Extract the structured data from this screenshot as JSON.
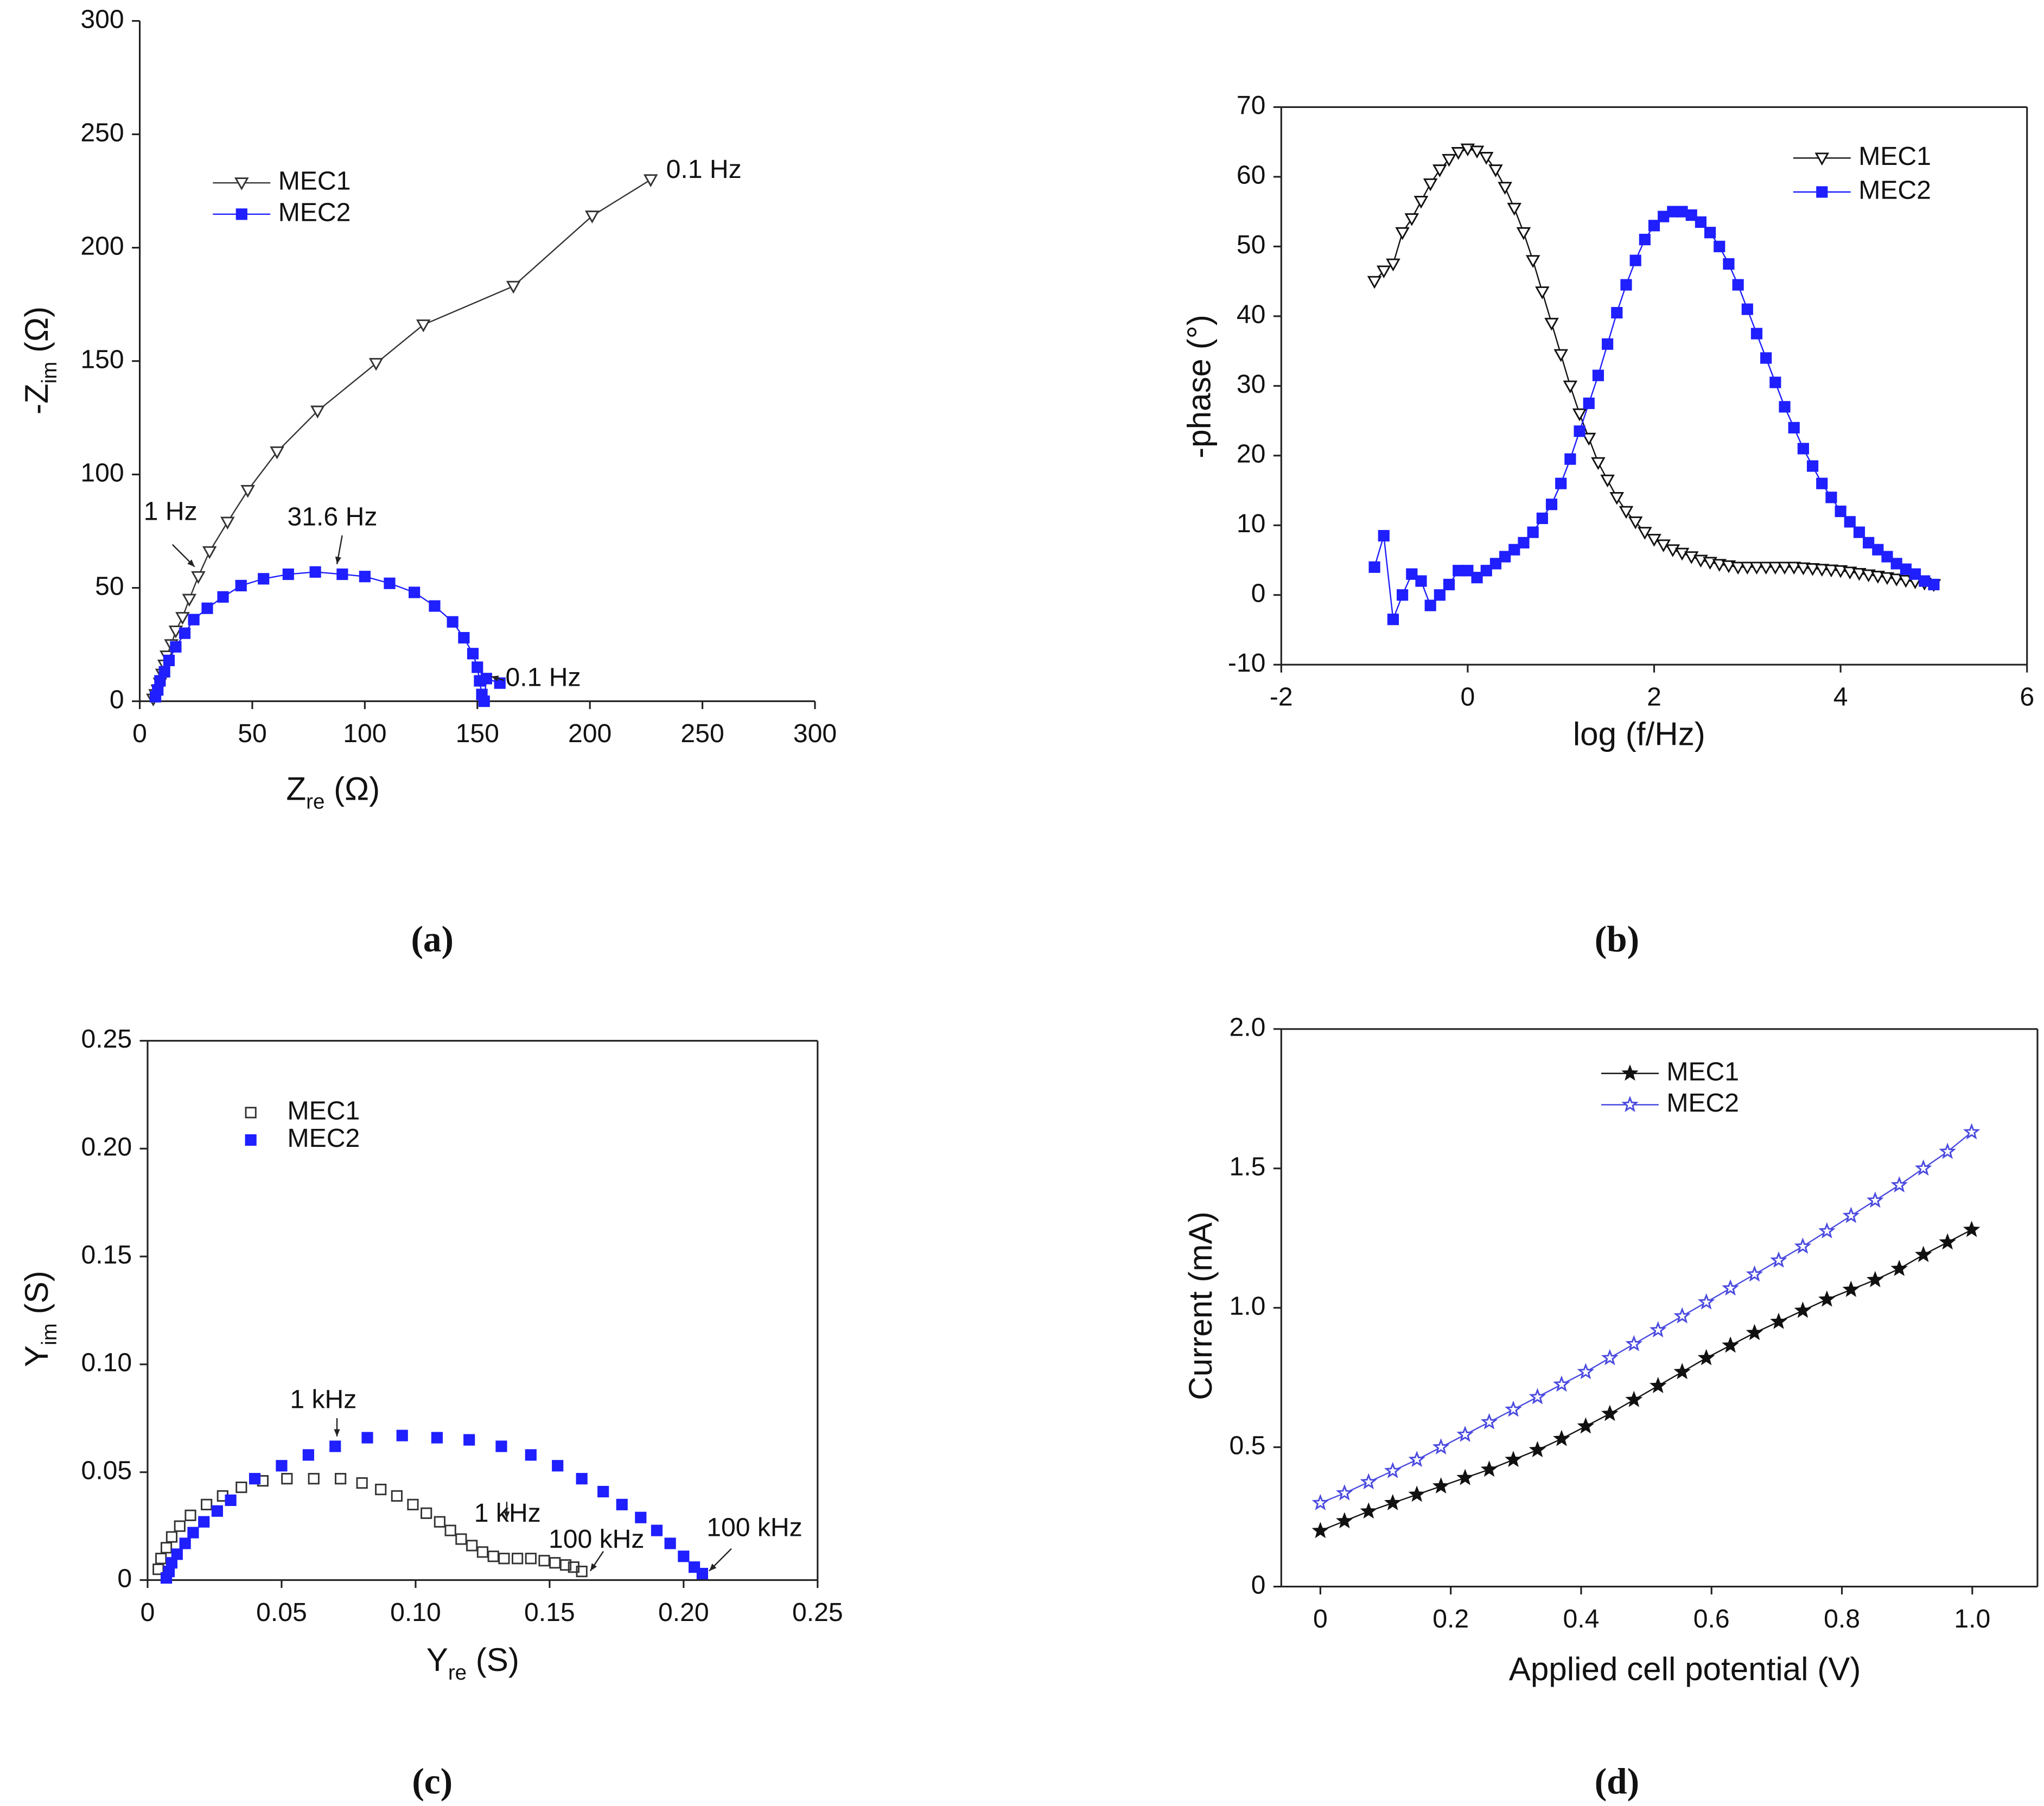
{
  "chart_data": [
    {
      "type": "line",
      "label": "(a)",
      "frame": "axes",
      "x_label": [
        "Z",
        "re",
        " (Ω)"
      ],
      "y_label": [
        "-Z",
        "im",
        " (Ω)"
      ],
      "xlim": [
        0,
        300
      ],
      "ylim": [
        0,
        300
      ],
      "xticks": [
        0,
        50,
        100,
        150,
        200,
        250,
        300
      ],
      "yticks": [
        0,
        50,
        100,
        150,
        200,
        250,
        300
      ],
      "annotations": [
        "0.1 Hz",
        "1 Hz",
        "31.6 Hz",
        "0.1 Hz"
      ],
      "series": [
        {
          "name": "MEC1",
          "color": "#333333",
          "marker": "triangle-down",
          "filled": false,
          "line": true,
          "x": [
            6,
            7,
            8,
            9,
            10,
            11,
            12,
            14,
            16,
            19,
            22,
            26,
            31,
            39,
            48,
            61,
            79,
            105,
            126,
            166,
            201,
            227
          ],
          "values": [
            1,
            3,
            5,
            8,
            12,
            16,
            20,
            25,
            31,
            37,
            45,
            55,
            66,
            79,
            93,
            110,
            128,
            149,
            166,
            183,
            214,
            230
          ]
        },
        {
          "name": "MEC2",
          "color": "#1f1fff",
          "marker": "square",
          "filled": true,
          "line": true,
          "x": [
            7,
            8,
            9,
            11,
            13,
            16,
            20,
            24,
            30,
            37,
            45,
            55,
            66,
            78,
            90,
            100,
            111,
            122,
            131,
            139,
            144,
            148,
            150,
            151,
            152,
            153,
            154,
            160
          ],
          "values": [
            2,
            5,
            9,
            13,
            18,
            24,
            30,
            36,
            41,
            46,
            51,
            54,
            56,
            57,
            56,
            55,
            52,
            48,
            42,
            35,
            28,
            21,
            15,
            9,
            3,
            0,
            10,
            8
          ]
        }
      ]
    },
    {
      "type": "line",
      "label": "(b)",
      "frame": "box",
      "x_label": [
        "log (f/Hz)"
      ],
      "y_label": [
        "-phase (°)"
      ],
      "xlim": [
        -2,
        6
      ],
      "ylim": [
        -10,
        70
      ],
      "xticks": [
        -2,
        0,
        2,
        4,
        6
      ],
      "yticks": [
        -10,
        0,
        10,
        20,
        30,
        40,
        50,
        60,
        70
      ],
      "annotations": [],
      "x": [
        -1,
        -0.9,
        -0.8,
        -0.7,
        -0.6,
        -0.5,
        -0.4,
        -0.3,
        -0.2,
        -0.1,
        0,
        0.1,
        0.2,
        0.3,
        0.4,
        0.5,
        0.6,
        0.7,
        0.8,
        0.9,
        1,
        1.1,
        1.2,
        1.3,
        1.4,
        1.5,
        1.6,
        1.7,
        1.8,
        1.9,
        2,
        2.1,
        2.2,
        2.3,
        2.4,
        2.5,
        2.6,
        2.7,
        2.8,
        2.9,
        3,
        3.1,
        3.2,
        3.3,
        3.4,
        3.5,
        3.6,
        3.7,
        3.8,
        3.9,
        4,
        4.1,
        4.2,
        4.3,
        4.4,
        4.5,
        4.6,
        4.7,
        4.8,
        4.9,
        5
      ],
      "series": [
        {
          "name": "MEC1",
          "color": "#111111",
          "marker": "triangle-down",
          "filled": false,
          "line": true,
          "values": [
            45,
            46.5,
            47.5,
            52,
            54,
            56.5,
            59,
            61,
            62.5,
            63.5,
            64,
            63.7,
            62.8,
            61,
            58.5,
            55.5,
            52,
            48,
            43.5,
            39,
            34.5,
            30,
            26,
            22.5,
            19,
            16.5,
            14,
            12,
            10.5,
            9,
            8,
            7.2,
            6.5,
            6,
            5.5,
            5,
            4.7,
            4.4,
            4.2,
            4,
            4,
            4,
            4,
            4,
            4,
            4,
            3.9,
            3.8,
            3.7,
            3.6,
            3.5,
            3.3,
            3.1,
            2.9,
            2.7,
            2.5,
            2.3,
            2.1,
            1.9,
            1.7,
            1.5
          ]
        },
        {
          "name": "MEC2",
          "color": "#1f1fff",
          "marker": "square",
          "filled": true,
          "line": true,
          "values": [
            4,
            8.5,
            -3.5,
            0,
            3,
            2,
            -1.5,
            0,
            1.5,
            3.5,
            3.5,
            2.5,
            3.5,
            4.5,
            5.5,
            6.5,
            7.5,
            9,
            11,
            13,
            16,
            19.5,
            23.5,
            27.5,
            31.5,
            36,
            40.5,
            44.5,
            48,
            51,
            53,
            54.3,
            55,
            55,
            54.5,
            53.5,
            52,
            50,
            47.5,
            44.5,
            41,
            37.5,
            34,
            30.5,
            27,
            24,
            21,
            18.5,
            16,
            14,
            12,
            10.5,
            9,
            7.5,
            6.5,
            5.5,
            4.5,
            3.7,
            3,
            2,
            1.5
          ]
        }
      ]
    },
    {
      "type": "scatter",
      "label": "(c)",
      "frame": "box",
      "x_label": [
        "Y",
        "re",
        " (S)"
      ],
      "y_label": [
        "Y",
        "im",
        " (S)"
      ],
      "xlim": [
        0,
        0.25
      ],
      "ylim": [
        0,
        0.25
      ],
      "xticks": [
        0,
        0.05,
        {
          "value": 0.1,
          "label": "0.10"
        },
        0.15,
        {
          "value": 0.2,
          "label": "0.20"
        },
        0.25
      ],
      "yticks": [
        0,
        0.05,
        {
          "value": 0.1,
          "label": "0.10"
        },
        0.15,
        {
          "value": 0.2,
          "label": "0.20"
        },
        0.25
      ],
      "annotations": [
        "1 kHz",
        "1 kHz",
        "100 kHz",
        "100 kHz"
      ],
      "series": [
        {
          "name": "MEC1",
          "color": "#333333",
          "marker": "square",
          "filled": false,
          "line": false,
          "x": [
            0.004,
            0.005,
            0.007,
            0.009,
            0.012,
            0.016,
            0.022,
            0.028,
            0.035,
            0.043,
            0.052,
            0.062,
            0.072,
            0.08,
            0.087,
            0.093,
            0.099,
            0.104,
            0.109,
            0.113,
            0.117,
            0.121,
            0.125,
            0.129,
            0.133,
            0.138,
            0.143,
            0.148,
            0.152,
            0.156,
            0.159,
            0.162
          ],
          "values": [
            0.005,
            0.01,
            0.015,
            0.02,
            0.025,
            0.03,
            0.035,
            0.039,
            0.043,
            0.046,
            0.047,
            0.047,
            0.047,
            0.045,
            0.042,
            0.039,
            0.035,
            0.031,
            0.027,
            0.023,
            0.019,
            0.016,
            0.013,
            0.011,
            0.01,
            0.01,
            0.01,
            0.009,
            0.008,
            0.007,
            0.006,
            0.004
          ]
        },
        {
          "name": "MEC2",
          "color": "#1f1fff",
          "marker": "square",
          "filled": true,
          "line": false,
          "x": [
            0.007,
            0.008,
            0.009,
            0.011,
            0.014,
            0.017,
            0.021,
            0.026,
            0.031,
            0.04,
            0.05,
            0.06,
            0.07,
            0.082,
            0.095,
            0.108,
            0.12,
            0.132,
            0.143,
            0.153,
            0.162,
            0.17,
            0.177,
            0.184,
            0.19,
            0.195,
            0.2,
            0.204,
            0.207
          ],
          "values": [
            0.001,
            0.004,
            0.008,
            0.012,
            0.017,
            0.022,
            0.027,
            0.032,
            0.037,
            0.047,
            0.053,
            0.058,
            0.062,
            0.066,
            0.067,
            0.066,
            0.065,
            0.062,
            0.058,
            0.053,
            0.047,
            0.041,
            0.035,
            0.029,
            0.023,
            0.017,
            0.011,
            0.006,
            0.003
          ]
        }
      ]
    },
    {
      "type": "line",
      "label": "(d)",
      "frame": "box",
      "x_label": [
        "Applied cell potential (V)"
      ],
      "y_label": [
        "Current (mA)"
      ],
      "xlim": [
        -0.06,
        1.1
      ],
      "ylim": [
        0,
        2
      ],
      "xticks": [
        0,
        0.2,
        0.4,
        0.6,
        0.8,
        {
          "value": 1,
          "label": "1.0"
        }
      ],
      "yticks": [
        0,
        0.5,
        {
          "value": 1,
          "label": "1.0"
        },
        1.5,
        {
          "value": 2,
          "label": "2.0"
        }
      ],
      "annotations": [],
      "x": [
        0,
        0.037,
        0.074,
        0.111,
        0.148,
        0.185,
        0.222,
        0.259,
        0.296,
        0.333,
        0.37,
        0.407,
        0.444,
        0.481,
        0.518,
        0.555,
        0.592,
        0.629,
        0.666,
        0.703,
        0.74,
        0.777,
        0.814,
        0.851,
        0.888,
        0.925,
        0.962,
        0.999
      ],
      "series": [
        {
          "name": "MEC1",
          "color": "#111111",
          "marker": "star",
          "filled": true,
          "line": true,
          "values": [
            0.2,
            0.235,
            0.27,
            0.3,
            0.33,
            0.36,
            0.39,
            0.42,
            0.455,
            0.49,
            0.53,
            0.575,
            0.62,
            0.67,
            0.72,
            0.77,
            0.82,
            0.865,
            0.91,
            0.95,
            0.99,
            1.03,
            1.065,
            1.1,
            1.14,
            1.19,
            1.235,
            1.28
          ]
        },
        {
          "name": "MEC2",
          "color": "#4a4ae0",
          "marker": "star",
          "filled": false,
          "line": true,
          "values": [
            0.3,
            0.335,
            0.375,
            0.415,
            0.455,
            0.5,
            0.545,
            0.59,
            0.635,
            0.68,
            0.725,
            0.77,
            0.82,
            0.87,
            0.92,
            0.97,
            1.02,
            1.07,
            1.12,
            1.17,
            1.22,
            1.275,
            1.33,
            1.385,
            1.44,
            1.5,
            1.56,
            1.63
          ]
        }
      ]
    }
  ]
}
